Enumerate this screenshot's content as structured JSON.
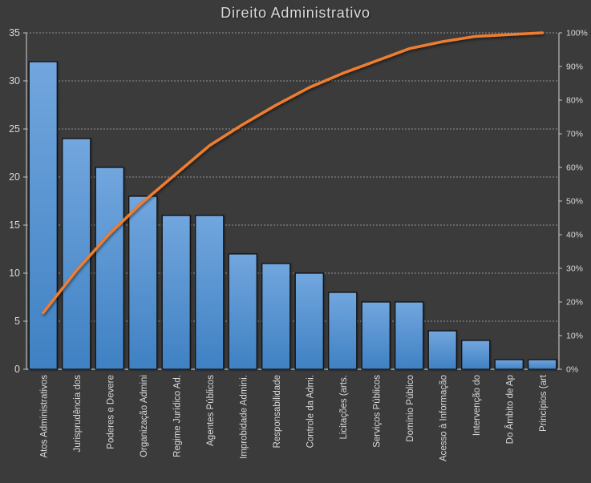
{
  "chart_data": {
    "type": "bar",
    "subtype": "pareto (bar + cumulative percentage line)",
    "title": "Direito Administrativo",
    "legend": "none",
    "grid": "dashed horizontal gridlines",
    "categories": [
      "Atos Administrativos",
      "Jurisprudência dos",
      "Poderes e Devere",
      "Organização Admini",
      "Regime Jurídico Ad.",
      "Agentes Públicos",
      "Improbidade Admini.",
      "Responsabilidade",
      "Controle da Admi.",
      "Licitações (arts.",
      "Serviços Públicos",
      "Domínio Público",
      "Acesso à Informação",
      "Intervenção do",
      "Do Âmbito de Ap",
      "Princípios (art"
    ],
    "values": [
      32,
      24,
      21,
      18,
      16,
      16,
      12,
      11,
      10,
      8,
      7,
      7,
      4,
      3,
      1,
      1
    ],
    "cumulative_line_pct": [
      16.75,
      29.32,
      40.31,
      49.74,
      58.12,
      66.49,
      72.77,
      78.53,
      83.77,
      87.96,
      91.62,
      95.29,
      97.38,
      98.95,
      99.48,
      100.0
    ],
    "left_axis": {
      "min": 0,
      "max": 35,
      "step": 5,
      "ticks": [
        "0",
        "5",
        "10",
        "15",
        "20",
        "25",
        "30",
        "35"
      ]
    },
    "right_axis": {
      "min": 0,
      "max": 100,
      "step": 10,
      "ticks": [
        "0%",
        "10%",
        "20%",
        "30%",
        "40%",
        "50%",
        "60%",
        "70%",
        "80%",
        "90%",
        "100%"
      ]
    },
    "colors": {
      "background": "#3b3b3b",
      "bar_top": "#72a6de",
      "bar_bottom": "#3f81c3",
      "bar_border": "#111111",
      "line": "#ed7d31",
      "text": "#d9d9d9",
      "gridline": "#c0c0c0",
      "axis": "#c6c6c6"
    }
  }
}
